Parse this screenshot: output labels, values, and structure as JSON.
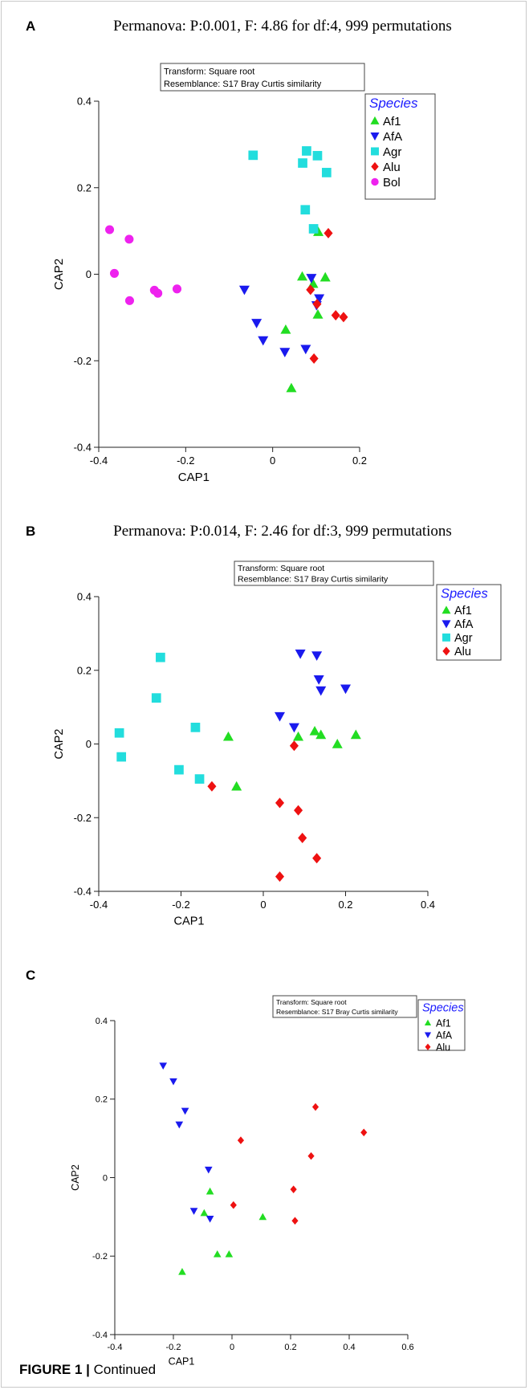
{
  "colors": {
    "Af1": "#22dd22",
    "AfA": "#1a1aee",
    "Agr": "#22dddd",
    "Alu": "#ee1111",
    "Bol": "#ee22ee"
  },
  "markers": {
    "Af1": "triangle-up",
    "AfA": "triangle-down",
    "Agr": "square",
    "Alu": "diamond",
    "Bol": "circle"
  },
  "caption": {
    "prefix": "FIGURE 1 |",
    "text": "Continued"
  },
  "chart_data": [
    {
      "type": "scatter",
      "panel": "A",
      "title": "Permanova: P:0.001, F: 4.86 for df:4, 999 permutations",
      "info": [
        "Transform: Square root",
        "Resemblance: S17 Bray Curtis similarity"
      ],
      "xlabel": "CAP1",
      "ylabel": "CAP2",
      "xlim": [
        -0.4,
        0.2
      ],
      "ylim": [
        -0.4,
        0.4
      ],
      "xticks": [
        -0.4,
        -0.2,
        0,
        0.2
      ],
      "yticks": [
        -0.4,
        -0.2,
        0,
        0.2,
        0.4
      ],
      "xtick_labels": [
        "-0.4",
        "-0.2",
        "0",
        "0.2"
      ],
      "ytick_labels": [
        "-0.4",
        "-0.2",
        "0",
        "0.2",
        "0.4"
      ],
      "legend": {
        "title": "Species",
        "position": "top-right",
        "entries": [
          "Af1",
          "AfA",
          "Agr",
          "Alu",
          "Bol"
        ]
      },
      "series": [
        {
          "name": "Af1",
          "points": [
            [
              0.105,
              0.098
            ],
            [
              0.068,
              -0.005
            ],
            [
              0.093,
              -0.022
            ],
            [
              0.121,
              -0.007
            ],
            [
              0.104,
              -0.093
            ],
            [
              0.03,
              -0.128
            ],
            [
              0.043,
              -0.263
            ]
          ]
        },
        {
          "name": "AfA",
          "points": [
            [
              -0.065,
              -0.036
            ],
            [
              -0.037,
              -0.113
            ],
            [
              -0.022,
              -0.153
            ],
            [
              0.028,
              -0.18
            ],
            [
              0.076,
              -0.173
            ],
            [
              0.089,
              -0.009
            ],
            [
              0.107,
              -0.056
            ],
            [
              0.101,
              -0.072
            ]
          ]
        },
        {
          "name": "Agr",
          "points": [
            [
              -0.045,
              0.275
            ],
            [
              0.078,
              0.285
            ],
            [
              0.103,
              0.274
            ],
            [
              0.069,
              0.257
            ],
            [
              0.124,
              0.235
            ],
            [
              0.075,
              0.149
            ],
            [
              0.094,
              0.105
            ]
          ]
        },
        {
          "name": "Alu",
          "points": [
            [
              0.128,
              0.095
            ],
            [
              0.087,
              -0.036
            ],
            [
              0.102,
              -0.069
            ],
            [
              0.145,
              -0.095
            ],
            [
              0.163,
              -0.099
            ],
            [
              0.095,
              -0.195
            ]
          ]
        },
        {
          "name": "Bol",
          "points": [
            [
              -0.375,
              0.103
            ],
            [
              -0.33,
              0.081
            ],
            [
              -0.364,
              0.002
            ],
            [
              -0.272,
              -0.037
            ],
            [
              -0.264,
              -0.044
            ],
            [
              -0.22,
              -0.034
            ],
            [
              -0.329,
              -0.061
            ]
          ]
        }
      ]
    },
    {
      "type": "scatter",
      "panel": "B",
      "title": "Permanova: P:0.014, F: 2.46 for df:3, 999 permutations",
      "info": [
        "Transform: Square root",
        "Resemblance: S17 Bray Curtis similarity"
      ],
      "xlabel": "CAP1",
      "ylabel": "CAP2",
      "xlim": [
        -0.4,
        0.4
      ],
      "ylim": [
        -0.4,
        0.4
      ],
      "xticks": [
        -0.4,
        -0.2,
        0,
        0.2,
        0.4
      ],
      "yticks": [
        -0.4,
        -0.2,
        0,
        0.2,
        0.4
      ],
      "xtick_labels": [
        "-0.4",
        "-0.2",
        "0",
        "0.2",
        "0.4"
      ],
      "ytick_labels": [
        "-0.4",
        "-0.2",
        "0",
        "0.2",
        "0.4"
      ],
      "legend": {
        "title": "Species",
        "position": "top-right",
        "entries": [
          "Af1",
          "AfA",
          "Agr",
          "Alu"
        ]
      },
      "series": [
        {
          "name": "Af1",
          "points": [
            [
              -0.085,
              0.02
            ],
            [
              -0.065,
              -0.115
            ],
            [
              0.085,
              0.02
            ],
            [
              0.125,
              0.035
            ],
            [
              0.14,
              0.025
            ],
            [
              0.18,
              0.0
            ],
            [
              0.225,
              0.025
            ]
          ]
        },
        {
          "name": "AfA",
          "points": [
            [
              0.09,
              0.245
            ],
            [
              0.13,
              0.24
            ],
            [
              0.135,
              0.175
            ],
            [
              0.14,
              0.145
            ],
            [
              0.2,
              0.15
            ],
            [
              0.04,
              0.075
            ],
            [
              0.075,
              0.045
            ]
          ]
        },
        {
          "name": "Agr",
          "points": [
            [
              -0.25,
              0.235
            ],
            [
              -0.26,
              0.125
            ],
            [
              -0.35,
              0.03
            ],
            [
              -0.345,
              -0.035
            ],
            [
              -0.165,
              0.045
            ],
            [
              -0.205,
              -0.07
            ],
            [
              -0.155,
              -0.095
            ]
          ]
        },
        {
          "name": "Alu",
          "points": [
            [
              -0.125,
              -0.115
            ],
            [
              0.075,
              -0.005
            ],
            [
              0.04,
              -0.16
            ],
            [
              0.085,
              -0.18
            ],
            [
              0.095,
              -0.255
            ],
            [
              0.13,
              -0.31
            ],
            [
              0.04,
              -0.36
            ]
          ]
        }
      ]
    },
    {
      "type": "scatter",
      "panel": "C",
      "title": "",
      "info": [
        "Transform: Square root",
        "Resemblance: S17 Bray Curtis similarity"
      ],
      "xlabel": "CAP1",
      "ylabel": "CAP2",
      "xlim": [
        -0.4,
        0.6
      ],
      "ylim": [
        -0.4,
        0.4
      ],
      "xticks": [
        -0.4,
        -0.2,
        0,
        0.2,
        0.4,
        0.6
      ],
      "yticks": [
        -0.4,
        -0.2,
        0,
        0.2,
        0.4
      ],
      "xtick_labels": [
        "-0.4",
        "-0.2",
        "0",
        "0.2",
        "0.4",
        "0.6"
      ],
      "ytick_labels": [
        "-0.4",
        "-0.2",
        "0",
        "0.2",
        "0.4"
      ],
      "legend": {
        "title": "Species",
        "position": "top-right",
        "entries": [
          "Af1",
          "AfA",
          "Alu"
        ]
      },
      "series": [
        {
          "name": "Af1",
          "points": [
            [
              -0.075,
              -0.035
            ],
            [
              -0.095,
              -0.09
            ],
            [
              -0.05,
              -0.195
            ],
            [
              -0.01,
              -0.195
            ],
            [
              -0.17,
              -0.24
            ],
            [
              0.105,
              -0.1
            ]
          ]
        },
        {
          "name": "AfA",
          "points": [
            [
              -0.235,
              0.285
            ],
            [
              -0.2,
              0.245
            ],
            [
              -0.16,
              0.17
            ],
            [
              -0.18,
              0.135
            ],
            [
              -0.08,
              0.02
            ],
            [
              -0.13,
              -0.085
            ],
            [
              -0.075,
              -0.105
            ]
          ]
        },
        {
          "name": "Alu",
          "points": [
            [
              0.285,
              0.18
            ],
            [
              0.45,
              0.115
            ],
            [
              0.03,
              0.095
            ],
            [
              0.27,
              0.055
            ],
            [
              0.21,
              -0.03
            ],
            [
              0.005,
              -0.07
            ],
            [
              0.215,
              -0.11
            ]
          ]
        }
      ]
    }
  ]
}
